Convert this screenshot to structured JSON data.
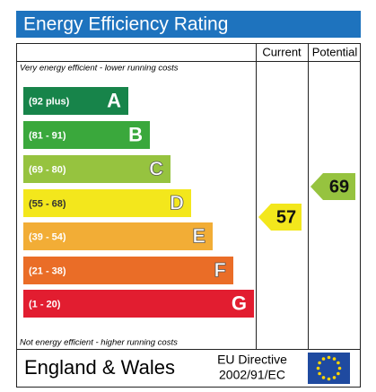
{
  "header": {
    "title": "Energy Efficiency Rating"
  },
  "columns": [
    "Current",
    "Potential"
  ],
  "top_note": "Very energy efficient - lower running costs",
  "bottom_note": "Not energy efficient - higher running costs",
  "bands": [
    {
      "range": "(92 plus)",
      "letter": "A",
      "color": "#17844a"
    },
    {
      "range": "(81 - 91)",
      "letter": "B",
      "color": "#3aa83c"
    },
    {
      "range": "(69 - 80)",
      "letter": "C",
      "color": "#96c33f"
    },
    {
      "range": "(55 - 68)",
      "letter": "D",
      "color": "#f3e71c"
    },
    {
      "range": "(39 - 54)",
      "letter": "E",
      "color": "#f2ad36"
    },
    {
      "range": "(21 - 38)",
      "letter": "F",
      "color": "#ea6d27"
    },
    {
      "range": "(1 - 20)",
      "letter": "G",
      "color": "#e21d30"
    }
  ],
  "current": {
    "value": 57,
    "color": "#f3e71c"
  },
  "potential": {
    "value": 69,
    "color": "#96c33f"
  },
  "footer": {
    "region": "England & Wales",
    "directive": [
      "EU Directive",
      "2002/91/EC"
    ]
  }
}
